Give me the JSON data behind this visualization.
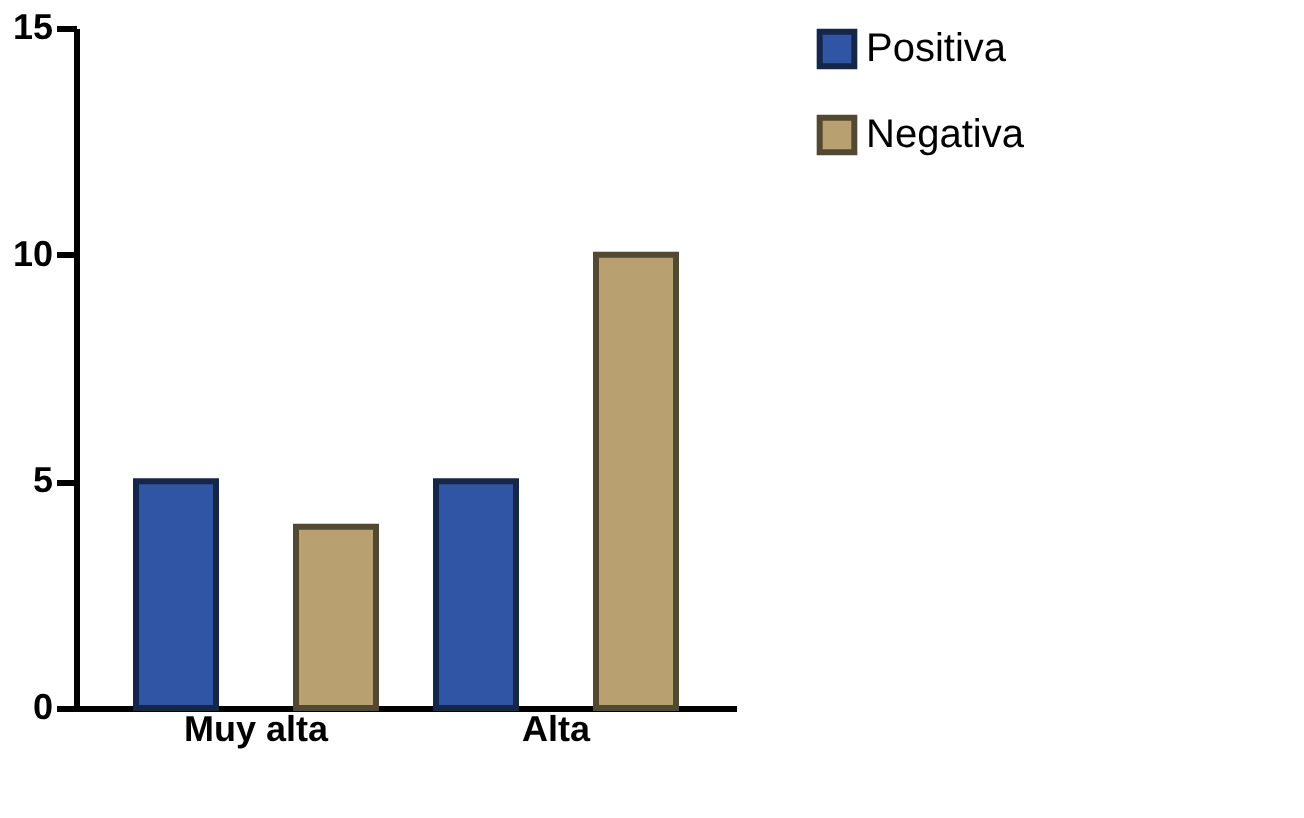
{
  "chart_data": {
    "type": "bar",
    "categories": [
      "Muy alta",
      "Alta"
    ],
    "series": [
      {
        "name": "Positiva",
        "color": "#2f55a4",
        "values": [
          5,
          5
        ]
      },
      {
        "name": "Negativa",
        "color": "#b9a070",
        "values": [
          4,
          10
        ]
      }
    ],
    "ylim": [
      0,
      15
    ],
    "yticks": [
      0,
      5,
      10,
      15
    ],
    "grid": false,
    "legend": "top right"
  }
}
